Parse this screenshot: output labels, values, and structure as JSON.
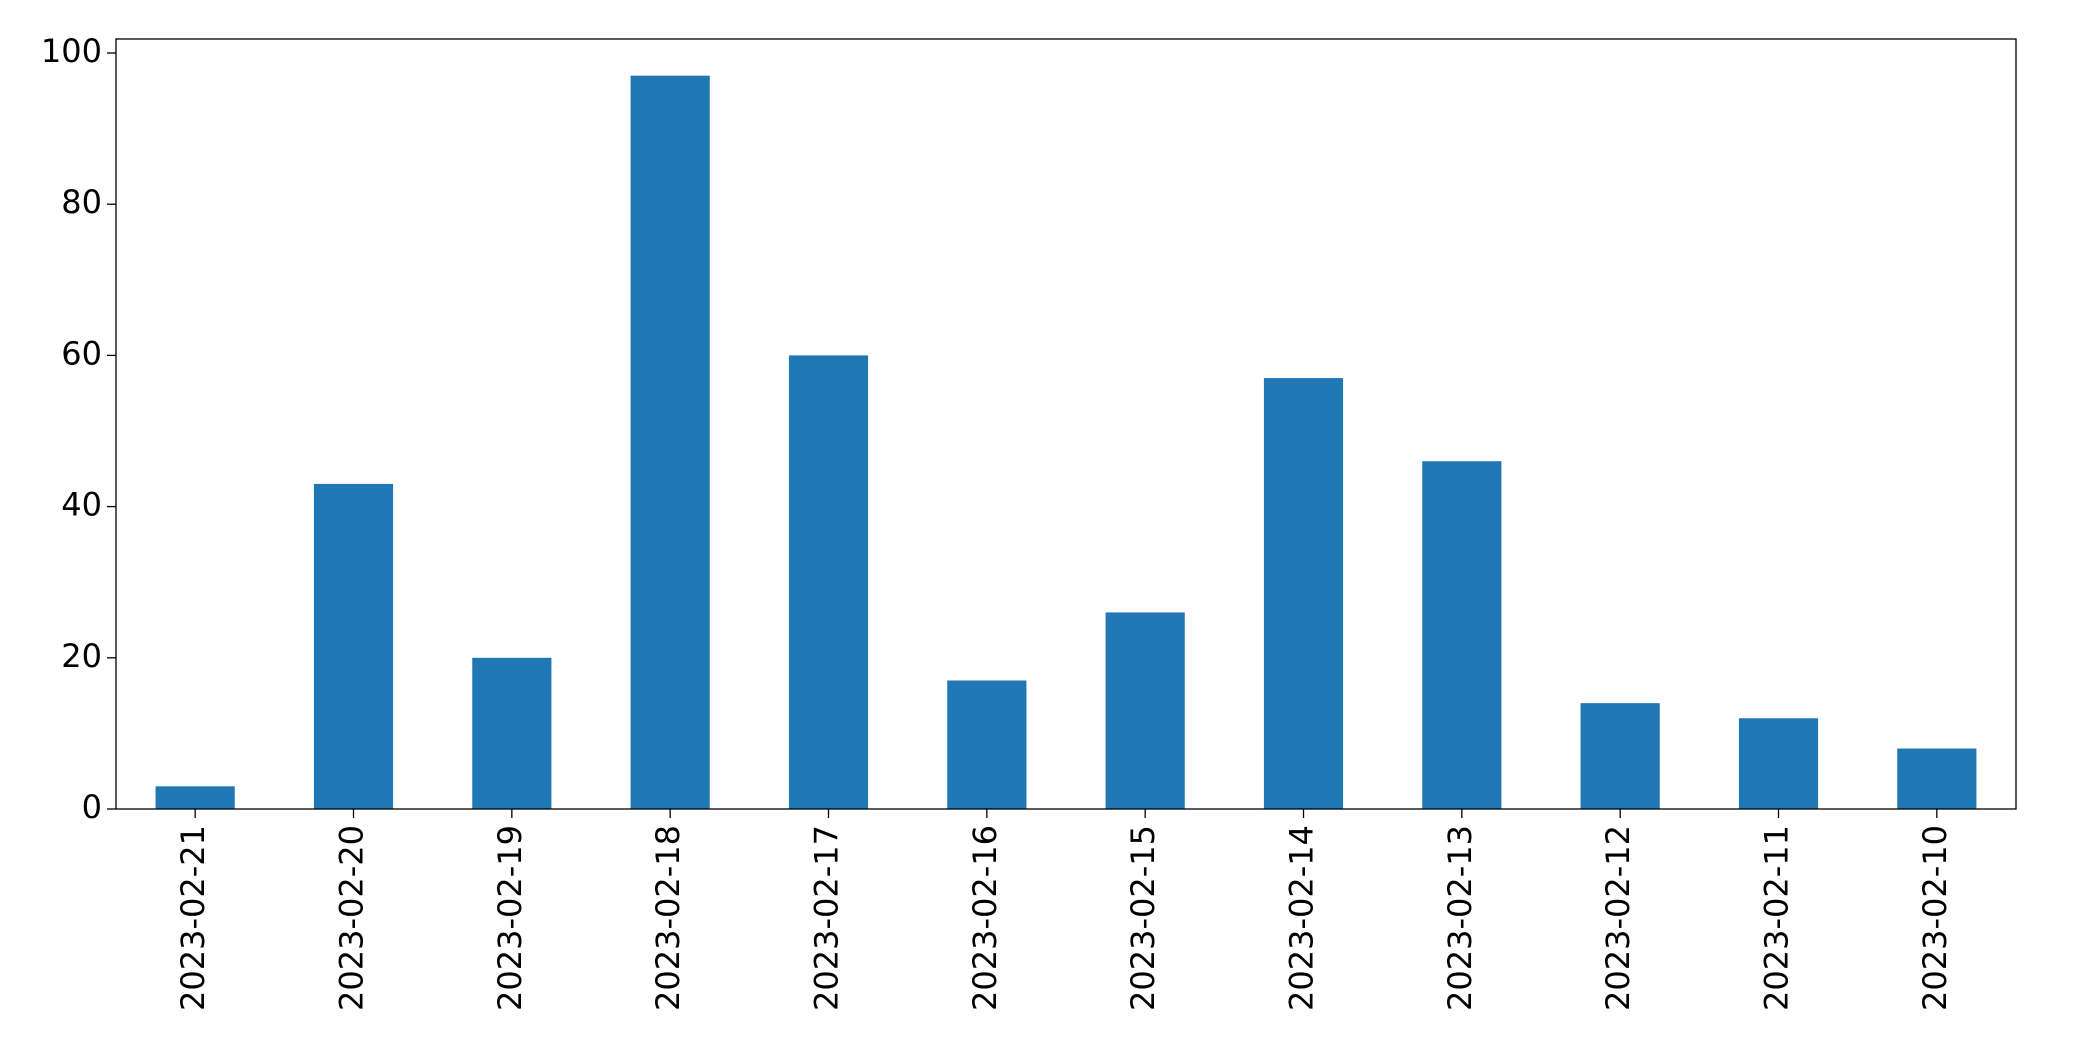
{
  "chart_data": {
    "type": "bar",
    "categories": [
      "2023-02-21",
      "2023-02-20",
      "2023-02-19",
      "2023-02-18",
      "2023-02-17",
      "2023-02-16",
      "2023-02-15",
      "2023-02-14",
      "2023-02-13",
      "2023-02-12",
      "2023-02-11",
      "2023-02-10"
    ],
    "values": [
      3,
      43,
      20,
      97,
      60,
      17,
      26,
      57,
      46,
      14,
      12,
      8
    ],
    "color": "#1f77b4",
    "ylim": [
      0,
      101.85
    ],
    "yticks": [
      0,
      20,
      40,
      60,
      80,
      100
    ],
    "grid": false
  }
}
